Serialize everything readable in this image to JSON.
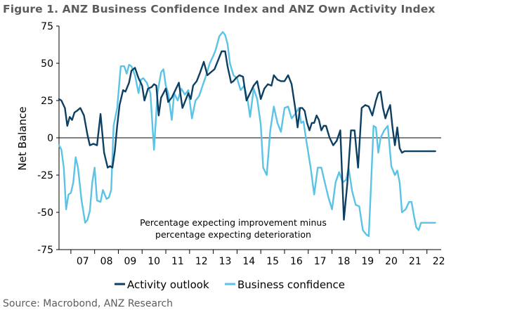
{
  "figure": {
    "title": "Figure 1.  ANZ Business Confidence Index and ANZ Own Activity Index",
    "source": "Source: Macrobond, ANZ Research"
  },
  "chart_data": {
    "type": "line",
    "title": "Figure 1.  ANZ Business Confidence Index and ANZ Own Activity Index",
    "ylabel": "Net Balance",
    "xlabel": "",
    "ylim": [
      -75,
      75
    ],
    "yticks": [
      75,
      50,
      25,
      0,
      -25,
      -50,
      -75
    ],
    "xlim": [
      2006.5,
      2022.6
    ],
    "xtick_labels": [
      "07",
      "08",
      "09",
      "10",
      "11",
      "12",
      "13",
      "14",
      "15",
      "16",
      "17",
      "18",
      "19",
      "20",
      "21",
      "22"
    ],
    "xtick_years": [
      2007,
      2008,
      2009,
      2010,
      2011,
      2012,
      2013,
      2014,
      2015,
      2016,
      2017,
      2018,
      2019,
      2020,
      2021,
      2022
    ],
    "grid": false,
    "zero_line": true,
    "legend_position": "bottom",
    "annotation": [
      "Percentage expecting improvement minus",
      "percentage expecting deterioration"
    ],
    "series": [
      {
        "name": "Activity outlook",
        "color": "#0d3f63",
        "x": [
          2006.5,
          2006.6,
          2006.75,
          2006.85,
          2006.95,
          2007.05,
          2007.15,
          2007.25,
          2007.4,
          2007.55,
          2007.7,
          2007.8,
          2007.95,
          2008.1,
          2008.25,
          2008.4,
          2008.55,
          2008.65,
          2008.75,
          2008.85,
          2008.95,
          2009.05,
          2009.2,
          2009.3,
          2009.45,
          2009.55,
          2009.7,
          2009.85,
          2010.0,
          2010.1,
          2010.25,
          2010.4,
          2010.5,
          2010.6,
          2010.7,
          2010.8,
          2010.9,
          2011.0,
          2011.1,
          2011.25,
          2011.4,
          2011.55,
          2011.7,
          2011.8,
          2011.95,
          2012.05,
          2012.15,
          2012.3,
          2012.45,
          2012.6,
          2012.75,
          2012.9,
          2013.05,
          2013.2,
          2013.35,
          2013.5,
          2013.6,
          2013.75,
          2013.85,
          2013.95,
          2014.1,
          2014.25,
          2014.4,
          2014.55,
          2014.7,
          2014.85,
          2015.0,
          2015.15,
          2015.3,
          2015.45,
          2015.55,
          2015.7,
          2015.85,
          2016.0,
          2016.15,
          2016.3,
          2016.45,
          2016.55,
          2016.65,
          2016.75,
          2016.85,
          2016.95,
          2017.05,
          2017.15,
          2017.25,
          2017.35,
          2017.45,
          2017.55,
          2017.65,
          2017.75,
          2017.9,
          2018.05,
          2018.2,
          2018.35,
          2018.5,
          2018.65,
          2018.8,
          2018.95,
          2019.1,
          2019.25,
          2019.4,
          2019.55,
          2019.7,
          2019.85,
          2019.95,
          2020.05,
          2020.15,
          2020.25,
          2020.35,
          2020.45,
          2020.55,
          2020.65,
          2020.75,
          2020.85,
          2020.95,
          2021.05,
          2021.15,
          2021.25,
          2021.35,
          2021.45,
          2021.55,
          2021.65,
          2021.75,
          2021.85,
          2021.95,
          2022.05,
          2022.15,
          2022.25,
          2022.35
        ],
        "y": [
          26,
          25,
          20,
          8,
          14,
          12,
          17,
          18,
          20,
          15,
          2,
          -5,
          -4,
          -5,
          16,
          -10,
          -20,
          -19,
          -20,
          -9,
          8,
          22,
          32,
          31,
          37,
          45,
          47,
          40,
          35,
          25,
          33,
          34,
          36,
          35,
          15,
          27,
          30,
          33,
          24,
          27,
          32,
          37,
          20,
          24,
          30,
          26,
          35,
          38,
          44,
          51,
          42,
          44,
          46,
          52,
          58,
          58,
          48,
          37,
          38,
          40,
          42,
          41,
          25,
          30,
          35,
          38,
          26,
          33,
          36,
          35,
          42,
          39,
          38,
          38,
          42,
          36,
          20,
          7,
          20,
          20,
          18,
          10,
          5,
          10,
          10,
          15,
          12,
          5,
          8,
          8,
          0,
          -5,
          -2,
          5,
          -55,
          -30,
          5,
          5,
          -20,
          20,
          22,
          21,
          15,
          25,
          30,
          31,
          20,
          13,
          18,
          22,
          7,
          -5,
          7,
          -7,
          -10,
          -9,
          -9,
          -9,
          -9,
          -9,
          -9,
          -9,
          -9,
          -9,
          -9,
          -9,
          -9,
          -9,
          -9
        ]
      },
      {
        "name": "Business confidence",
        "color": "#5bc3e6",
        "x": [
          2006.5,
          2006.6,
          2006.7,
          2006.8,
          2006.9,
          2007.0,
          2007.1,
          2007.2,
          2007.3,
          2007.45,
          2007.6,
          2007.7,
          2007.8,
          2007.9,
          2008.0,
          2008.1,
          2008.25,
          2008.35,
          2008.5,
          2008.6,
          2008.7,
          2008.8,
          2008.95,
          2009.1,
          2009.25,
          2009.35,
          2009.45,
          2009.55,
          2009.7,
          2009.85,
          2009.95,
          2010.05,
          2010.2,
          2010.35,
          2010.5,
          2010.65,
          2010.8,
          2010.9,
          2011.0,
          2011.1,
          2011.25,
          2011.35,
          2011.5,
          2011.65,
          2011.8,
          2011.95,
          2012.1,
          2012.25,
          2012.4,
          2012.55,
          2012.7,
          2012.85,
          2013.0,
          2013.1,
          2013.25,
          2013.4,
          2013.5,
          2013.6,
          2013.7,
          2013.85,
          2014.0,
          2014.15,
          2014.3,
          2014.45,
          2014.55,
          2014.7,
          2014.85,
          2015.0,
          2015.1,
          2015.25,
          2015.4,
          2015.55,
          2015.7,
          2015.85,
          2016.0,
          2016.15,
          2016.3,
          2016.45,
          2016.6,
          2016.7,
          2016.8,
          2016.9,
          2017.0,
          2017.1,
          2017.25,
          2017.4,
          2017.55,
          2017.7,
          2017.85,
          2018.0,
          2018.15,
          2018.3,
          2018.45,
          2018.6,
          2018.7,
          2018.85,
          2019.0,
          2019.15,
          2019.3,
          2019.45,
          2019.55,
          2019.65,
          2019.75,
          2019.85,
          2019.95,
          2020.05,
          2020.2,
          2020.35,
          2020.5,
          2020.65,
          2020.75,
          2020.85,
          2020.95,
          2021.1,
          2021.25,
          2021.35,
          2021.45,
          2021.55,
          2021.65,
          2021.75,
          2021.85,
          2021.95,
          2022.05,
          2022.15,
          2022.25,
          2022.35
        ],
        "y": [
          -5,
          -8,
          -20,
          -48,
          -38,
          -37,
          -30,
          -13,
          -20,
          -42,
          -57,
          -55,
          -49,
          -30,
          -20,
          -42,
          -43,
          -35,
          -41,
          -40,
          -35,
          8,
          20,
          48,
          48,
          43,
          49,
          48,
          42,
          30,
          39,
          40,
          37,
          30,
          -8,
          30,
          44,
          46,
          35,
          30,
          12,
          30,
          25,
          33,
          29,
          32,
          13,
          25,
          28,
          35,
          42,
          50,
          55,
          59,
          68,
          71,
          69,
          63,
          50,
          42,
          40,
          32,
          35,
          25,
          14,
          33,
          26,
          9,
          -20,
          -25,
          5,
          21,
          10,
          4,
          20,
          21,
          13,
          16,
          20,
          10,
          11,
          0,
          -10,
          -20,
          -38,
          -20,
          -20,
          -30,
          -40,
          -48,
          -30,
          -23,
          -30,
          -28,
          -20,
          -36,
          -45,
          -46,
          -62,
          -65,
          -66,
          -30,
          8,
          7,
          -10,
          0,
          5,
          8,
          -19,
          -25,
          -22,
          -30,
          -50,
          -48,
          -43,
          -43,
          -52,
          -60,
          -62,
          -57,
          -57,
          -57,
          -57,
          -57,
          -57,
          -57
        ]
      }
    ]
  }
}
